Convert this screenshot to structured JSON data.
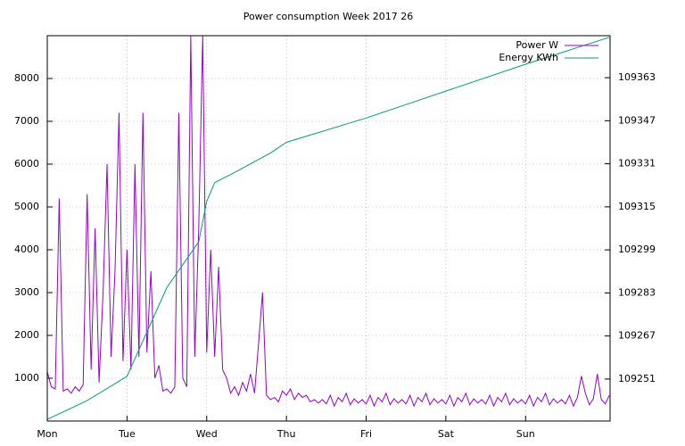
{
  "chart_data": {
    "type": "line",
    "title": "Power consumption Week 2017 26",
    "xlim": [
      0,
      7.06
    ],
    "xticks": [
      {
        "value": 0,
        "label": "Mon"
      },
      {
        "value": 1,
        "label": "Tue"
      },
      {
        "value": 2,
        "label": "Wed"
      },
      {
        "value": 3,
        "label": "Thu"
      },
      {
        "value": 4,
        "label": "Fri"
      },
      {
        "value": 5,
        "label": "Sat"
      },
      {
        "value": 6,
        "label": "Sun"
      }
    ],
    "ylim": [
      0,
      9000
    ],
    "yticks": [
      1000,
      2000,
      3000,
      4000,
      5000,
      6000,
      7000,
      8000
    ],
    "y2lim": [
      109235.4,
      109378.6
    ],
    "y2ticks": [
      109251,
      109267,
      109283,
      109299,
      109315,
      109331,
      109347,
      109363
    ],
    "grid": true,
    "legend": "top-right",
    "series": [
      {
        "name": "Power W",
        "color": "#9400d3",
        "x": [
          0,
          0.05,
          0.1,
          0.15,
          0.2,
          0.25,
          0.3,
          0.35,
          0.4,
          0.45,
          0.5,
          0.55,
          0.6,
          0.65,
          0.7,
          0.75,
          0.8,
          0.85,
          0.9,
          0.95,
          1,
          1.05,
          1.1,
          1.15,
          1.2,
          1.25,
          1.3,
          1.35,
          1.4,
          1.45,
          1.5,
          1.55,
          1.6,
          1.65,
          1.7,
          1.75,
          1.8,
          1.85,
          1.9,
          1.95,
          2,
          2.05,
          2.1,
          2.15,
          2.2,
          2.25,
          2.3,
          2.35,
          2.4,
          2.45,
          2.5,
          2.55,
          2.6,
          2.65,
          2.7,
          2.75,
          2.8,
          2.85,
          2.9,
          2.95,
          3,
          3.05,
          3.1,
          3.15,
          3.2,
          3.25,
          3.3,
          3.35,
          3.4,
          3.45,
          3.5,
          3.55,
          3.6,
          3.65,
          3.7,
          3.75,
          3.8,
          3.85,
          3.9,
          3.95,
          4,
          4.05,
          4.1,
          4.15,
          4.2,
          4.25,
          4.3,
          4.35,
          4.4,
          4.45,
          4.5,
          4.55,
          4.6,
          4.65,
          4.7,
          4.75,
          4.8,
          4.85,
          4.9,
          4.95,
          5,
          5.05,
          5.1,
          5.15,
          5.2,
          5.25,
          5.3,
          5.35,
          5.4,
          5.45,
          5.5,
          5.55,
          5.6,
          5.65,
          5.7,
          5.75,
          5.8,
          5.85,
          5.9,
          5.95,
          6,
          6.05,
          6.1,
          6.15,
          6.2,
          6.25,
          6.3,
          6.35,
          6.4,
          6.45,
          6.5,
          6.55,
          6.6,
          6.65,
          6.7,
          6.75,
          6.8,
          6.85,
          6.9,
          6.95,
          7,
          7.05
        ],
        "values": [
          1150,
          800,
          750,
          5200,
          700,
          750,
          650,
          800,
          700,
          850,
          5300,
          1200,
          4500,
          900,
          3000,
          6000,
          1500,
          3500,
          7200,
          1400,
          4000,
          1200,
          6000,
          1500,
          7200,
          1600,
          3500,
          1000,
          1300,
          700,
          750,
          650,
          800,
          7200,
          1000,
          800,
          9000,
          1500,
          4500,
          9000,
          1600,
          4000,
          1500,
          3600,
          1200,
          1000,
          650,
          800,
          600,
          900,
          700,
          1100,
          650,
          1800,
          3000,
          600,
          500,
          550,
          450,
          700,
          600,
          750,
          500,
          650,
          550,
          600,
          450,
          500,
          420,
          500,
          400,
          600,
          350,
          550,
          450,
          650,
          380,
          520,
          420,
          500,
          400,
          600,
          350,
          550,
          450,
          650,
          380,
          520,
          420,
          500,
          400,
          600,
          350,
          550,
          450,
          650,
          380,
          520,
          420,
          500,
          400,
          600,
          350,
          550,
          450,
          650,
          380,
          520,
          420,
          500,
          400,
          600,
          350,
          550,
          450,
          650,
          380,
          520,
          420,
          500,
          400,
          600,
          350,
          550,
          450,
          650,
          380,
          520,
          420,
          500,
          400,
          600,
          350,
          550,
          1050,
          650,
          380,
          520,
          1100,
          500,
          400,
          600
        ]
      },
      {
        "name": "Energy KWh",
        "color": "#009e73",
        "axis": "y2",
        "x": [
          0,
          0.5,
          1,
          1.5,
          1.9,
          2.0,
          2.1,
          2.3,
          2.8,
          3.0,
          4.0,
          4.6,
          5.0,
          6.0,
          7.05
        ],
        "values": [
          109236,
          109243,
          109252,
          109285,
          109302,
          109317,
          109324,
          109327,
          109335,
          109339,
          109348,
          109354,
          109358,
          109368,
          109378
        ]
      }
    ]
  }
}
